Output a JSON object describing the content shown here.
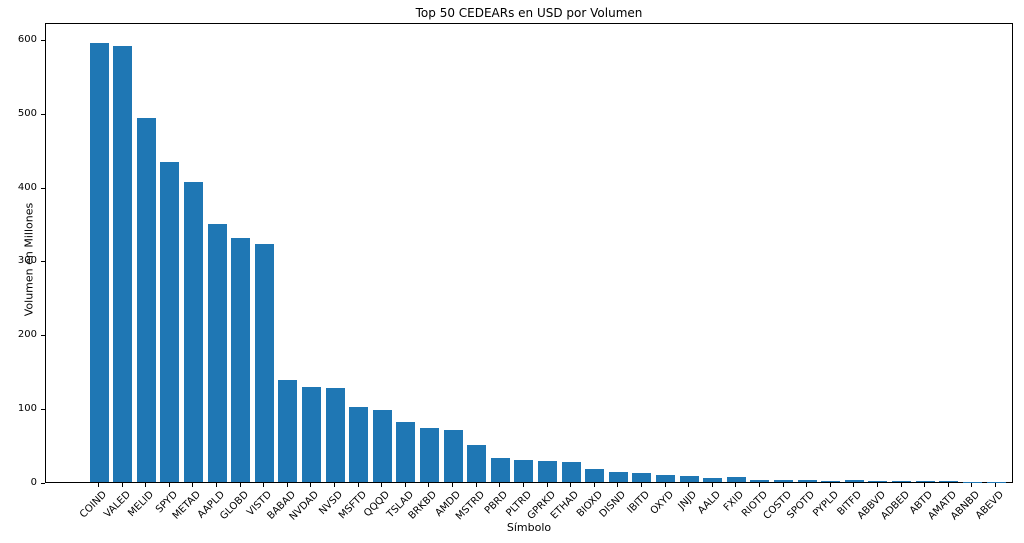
{
  "title": "Top 50 CEDEARs en USD por Volumen",
  "chart_data": {
    "type": "bar",
    "title": "Top 50 CEDEARs en USD por Volumen",
    "xlabel": "Símbolo",
    "ylabel": "Volumen en Millones",
    "ylim": [
      0,
      623
    ],
    "yticks": [
      0,
      100,
      200,
      300,
      400,
      500,
      600
    ],
    "bar_color": "#1f77b4",
    "legend": "none",
    "grid": false,
    "categories": [
      "COIND",
      "VALED",
      "MELID",
      "SPYD",
      "METAD",
      "AAPLD",
      "GLOBD",
      "VISTD",
      "BABAD",
      "NVDAD",
      "NVSD",
      "MSFTD",
      "QQQD",
      "TSLAD",
      "BRKBD",
      "AMDD",
      "MSTRD",
      "PBRD",
      "PLTRD",
      "GPRKD",
      "ETHAD",
      "BIOXD",
      "DISND",
      "IBITD",
      "OXYD",
      "JNJD",
      "AALD",
      "FXID",
      "RIOTD",
      "COSTD",
      "SPOTD",
      "PYPLD",
      "BITFD",
      "ABBVD",
      "ADBED",
      "ABTD",
      "AMATD",
      "ABNBD",
      "ABEVD"
    ],
    "values": [
      594,
      590,
      493,
      434,
      407,
      350,
      330,
      322,
      138,
      129,
      128,
      101,
      97,
      81,
      73,
      70,
      50,
      32,
      30,
      28,
      27,
      18,
      14,
      12,
      10,
      8,
      5.5,
      6.5,
      3,
      2.8,
      2.5,
      2,
      2.3,
      2,
      1.6,
      1.4,
      1.1,
      0.4,
      0.25
    ]
  }
}
